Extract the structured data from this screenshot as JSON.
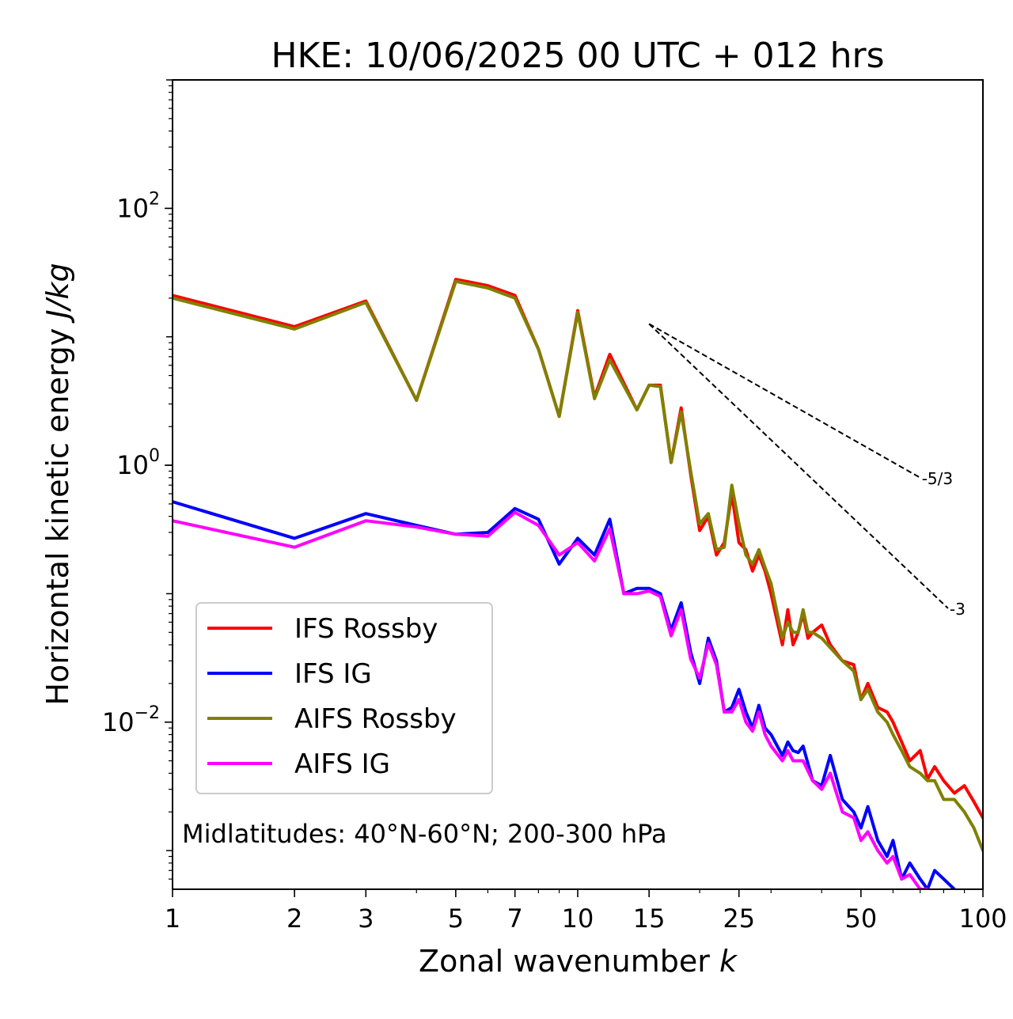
{
  "chart_data": {
    "type": "line",
    "title": "HKE: 10/06/2025 00 UTC + 012 hrs",
    "xlabel": "Zonal wavenumber",
    "xlabel_var": "k",
    "ylabel": "Horizontal kinetic energy",
    "ylabel_units": "J/kg",
    "xscale": "log",
    "yscale": "log",
    "xlim": [
      1,
      100
    ],
    "ylim": [
      0.0005,
      1000
    ],
    "xticks": [
      1,
      2,
      3,
      5,
      7,
      10,
      15,
      25,
      50,
      100
    ],
    "xtick_labels": [
      "1",
      "2",
      "3",
      "5",
      "7",
      "10",
      "15",
      "25",
      "50",
      "100"
    ],
    "yticks": [
      {
        "value": 100,
        "base": "10",
        "exp": "2"
      },
      {
        "value": 1,
        "base": "10",
        "exp": "0"
      },
      {
        "value": 0.01,
        "base": "10",
        "exp": "−2"
      }
    ],
    "annotation": "Midlatitudes: 40°N-60°N; 200-300 hPa",
    "legend_placement": "lower-left",
    "grid": false,
    "reference_lines": [
      {
        "label": "-5/3",
        "k": [
          15,
          70
        ],
        "y": [
          12.6,
          0.8
        ]
      },
      {
        "label": "-3",
        "k": [
          15,
          82
        ],
        "y": [
          12.6,
          0.077
        ]
      }
    ],
    "series": [
      {
        "name": "IFS Rossby",
        "color": "#ff0000",
        "x": [
          1,
          2,
          3,
          4,
          5,
          6,
          7,
          8,
          9,
          10,
          11,
          12,
          14,
          15,
          16,
          17,
          18,
          19,
          20,
          21,
          22,
          23,
          24,
          25,
          26,
          27,
          28,
          29,
          30,
          32,
          33,
          34,
          35,
          36,
          37,
          38,
          40,
          42,
          45,
          48,
          50,
          52,
          55,
          58,
          60,
          63,
          66,
          70,
          73,
          76,
          80,
          85,
          90,
          95,
          100
        ],
        "y": [
          21,
          12,
          19,
          3.2,
          28,
          25,
          21,
          8,
          2.4,
          16,
          3.4,
          7.3,
          2.7,
          4.2,
          4.2,
          1.05,
          2.8,
          0.85,
          0.31,
          0.4,
          0.2,
          0.25,
          0.6,
          0.25,
          0.22,
          0.15,
          0.2,
          0.15,
          0.1,
          0.04,
          0.075,
          0.04,
          0.05,
          0.07,
          0.045,
          0.05,
          0.057,
          0.04,
          0.03,
          0.028,
          0.015,
          0.02,
          0.013,
          0.012,
          0.01,
          0.007,
          0.005,
          0.006,
          0.0036,
          0.0045,
          0.0035,
          0.0028,
          0.0032,
          0.0024,
          0.0018
        ]
      },
      {
        "name": "IFS IG",
        "color": "#0000ff",
        "x": [
          1,
          2,
          3,
          4,
          5,
          6,
          7,
          8,
          9,
          10,
          11,
          12,
          13,
          14,
          15,
          16,
          17,
          18,
          19,
          20,
          21,
          22,
          23,
          24,
          25,
          26,
          27,
          28,
          29,
          30,
          32,
          33,
          34,
          35,
          36,
          38,
          40,
          42,
          45,
          48,
          50,
          52,
          55,
          58,
          60,
          63,
          66,
          70,
          73,
          76,
          80,
          85,
          90,
          95,
          100
        ],
        "y": [
          0.52,
          0.27,
          0.42,
          0.34,
          0.29,
          0.3,
          0.46,
          0.38,
          0.17,
          0.27,
          0.2,
          0.38,
          0.1,
          0.11,
          0.11,
          0.1,
          0.052,
          0.085,
          0.035,
          0.02,
          0.045,
          0.03,
          0.012,
          0.013,
          0.018,
          0.012,
          0.009,
          0.0135,
          0.009,
          0.008,
          0.0055,
          0.007,
          0.006,
          0.0058,
          0.0065,
          0.0035,
          0.0032,
          0.0055,
          0.0025,
          0.002,
          0.0015,
          0.0022,
          0.0012,
          0.0009,
          0.0012,
          0.0006,
          0.0008,
          0.0006,
          0.0005,
          0.0007,
          0.0006,
          0.0005,
          0.0004,
          0.0003,
          0.00025
        ]
      },
      {
        "name": "AIFS Rossby",
        "color": "#808000",
        "x": [
          1,
          2,
          3,
          4,
          5,
          6,
          7,
          8,
          9,
          10,
          11,
          12,
          14,
          15,
          16,
          17,
          18,
          19,
          20,
          21,
          22,
          23,
          24,
          25,
          26,
          27,
          28,
          29,
          30,
          32,
          33,
          34,
          35,
          36,
          37,
          38,
          40,
          42,
          45,
          48,
          50,
          52,
          55,
          58,
          60,
          63,
          66,
          70,
          73,
          76,
          80,
          85,
          90,
          95,
          100
        ],
        "y": [
          20,
          11.5,
          18.5,
          3.2,
          27,
          24,
          20,
          8,
          2.4,
          15.5,
          3.3,
          6.6,
          2.7,
          4.2,
          4.1,
          1.05,
          2.6,
          0.9,
          0.35,
          0.42,
          0.22,
          0.23,
          0.7,
          0.35,
          0.2,
          0.17,
          0.22,
          0.16,
          0.12,
          0.045,
          0.06,
          0.05,
          0.05,
          0.075,
          0.05,
          0.05,
          0.045,
          0.038,
          0.03,
          0.025,
          0.015,
          0.018,
          0.012,
          0.01,
          0.008,
          0.006,
          0.0045,
          0.004,
          0.0035,
          0.0035,
          0.0025,
          0.0025,
          0.002,
          0.0015,
          0.001
        ]
      },
      {
        "name": "AIFS IG",
        "color": "#ff00ff",
        "x": [
          1,
          2,
          3,
          4,
          5,
          6,
          7,
          8,
          9,
          10,
          11,
          12,
          13,
          14,
          15,
          16,
          17,
          18,
          19,
          20,
          21,
          22,
          23,
          24,
          25,
          26,
          27,
          28,
          29,
          30,
          32,
          33,
          34,
          35,
          36,
          38,
          40,
          42,
          45,
          48,
          50,
          52,
          55,
          58,
          60,
          63,
          66,
          70,
          73,
          76,
          80,
          85,
          90,
          95,
          100
        ],
        "y": [
          0.37,
          0.23,
          0.37,
          0.33,
          0.29,
          0.28,
          0.43,
          0.34,
          0.2,
          0.25,
          0.18,
          0.32,
          0.1,
          0.1,
          0.105,
          0.095,
          0.047,
          0.075,
          0.031,
          0.022,
          0.041,
          0.028,
          0.012,
          0.012,
          0.015,
          0.01,
          0.0085,
          0.012,
          0.008,
          0.0065,
          0.005,
          0.006,
          0.005,
          0.005,
          0.005,
          0.0035,
          0.003,
          0.004,
          0.002,
          0.0018,
          0.0012,
          0.0014,
          0.001,
          0.0008,
          0.0009,
          0.0006,
          0.00065,
          0.0005,
          0.0005,
          0.00045,
          0.0004,
          0.00035,
          0.0003,
          0.00028,
          0.00025
        ]
      }
    ]
  }
}
